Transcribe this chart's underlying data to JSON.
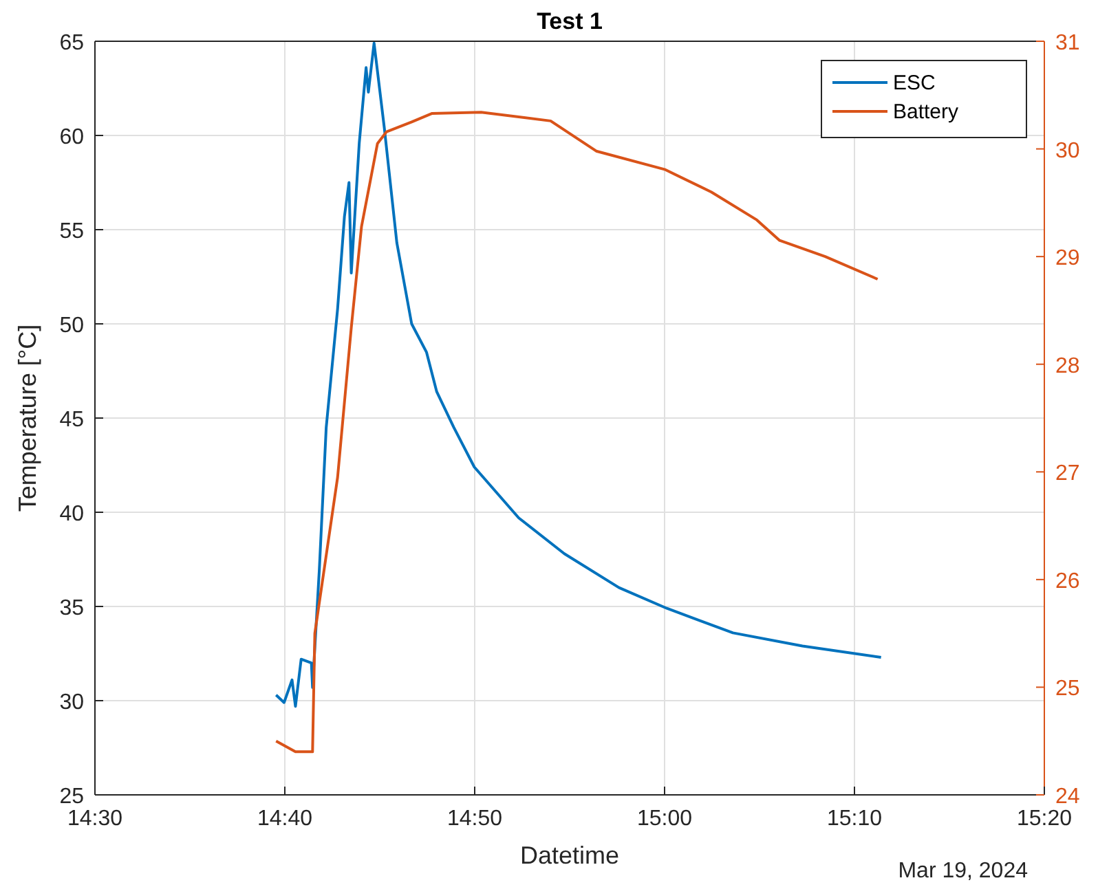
{
  "chart_data": {
    "type": "line",
    "title": "Test 1",
    "xlabel": "Datetime",
    "ylabel": "Temperature [°C]",
    "annotations": [
      "Mar 19, 2024"
    ],
    "xlim": [
      14.5,
      15.333333
    ],
    "xticks": [
      {
        "value": 14.5,
        "label": "14:30"
      },
      {
        "value": 14.666667,
        "label": "14:40"
      },
      {
        "value": 14.833333,
        "label": "14:50"
      },
      {
        "value": 15,
        "label": "15:00"
      },
      {
        "value": 15.166667,
        "label": "15:10"
      },
      {
        "value": 15.333333,
        "label": "15:20"
      }
    ],
    "ylim": [
      25,
      65
    ],
    "yticks": [
      25,
      30,
      35,
      40,
      45,
      50,
      55,
      60,
      65
    ],
    "y2lim": [
      24,
      31
    ],
    "y2ticks": [
      24,
      25,
      26,
      27,
      28,
      29,
      30,
      31
    ],
    "grid": true,
    "legend": "top right",
    "line_style": "solid",
    "series": [
      {
        "name": "ESC",
        "color": "#0072bd",
        "x": [
          14.659,
          14.666,
          14.673,
          14.676,
          14.681,
          14.69,
          14.691,
          14.697,
          14.703,
          14.713,
          14.719,
          14.723,
          14.725,
          14.732,
          14.738,
          14.74,
          14.745,
          14.754,
          14.765,
          14.778,
          14.791,
          14.8,
          14.815,
          14.833,
          14.872,
          14.912,
          14.96,
          15.002,
          15.06,
          15.121,
          15.19
        ],
        "values": [
          30.3,
          29.9,
          31.1,
          29.7,
          32.2,
          32.0,
          30.7,
          37.0,
          44.5,
          50.8,
          55.7,
          57.5,
          52.7,
          59.6,
          63.6,
          62.3,
          64.9,
          60.4,
          54.3,
          50.0,
          48.5,
          46.4,
          44.5,
          42.4,
          39.7,
          37.8,
          36.0,
          34.9,
          33.6,
          32.9,
          32.3
        ]
      },
      {
        "name": "Battery",
        "color": "#d95319",
        "axis": "y2",
        "x": [
          14.659,
          14.676,
          14.691,
          14.693,
          14.713,
          14.725,
          14.734,
          14.748,
          14.756,
          14.778,
          14.796,
          14.839,
          14.9,
          14.94,
          15.0,
          15.041,
          15.081,
          15.101,
          15.141,
          15.187
        ],
        "values": [
          24.5,
          24.4,
          24.4,
          25.5,
          26.95,
          28.34,
          29.28,
          30.05,
          30.16,
          30.25,
          30.33,
          30.34,
          30.26,
          29.98,
          29.81,
          29.6,
          29.34,
          29.15,
          29.0,
          28.79
        ]
      }
    ]
  }
}
